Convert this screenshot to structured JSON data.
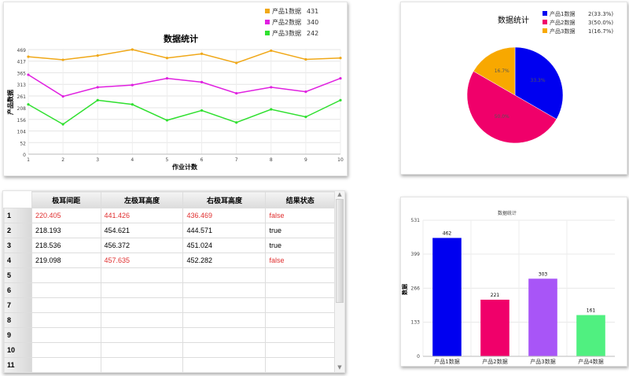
{
  "chart_data": [
    {
      "type": "line",
      "title": "数据统计",
      "xlabel": "作业计数",
      "ylabel": "产品数据",
      "x": [
        1,
        2,
        3,
        4,
        5,
        6,
        7,
        8,
        9,
        10
      ],
      "yticks": [
        0,
        52,
        104,
        156,
        208,
        261,
        313,
        365,
        417,
        469
      ],
      "ylim": [
        0,
        469
      ],
      "grid": true,
      "legend": "top-right",
      "series": [
        {
          "name": "产品1数据",
          "legend_value": "431",
          "color": "#f0a818",
          "values": [
            437,
            423,
            442,
            469,
            431,
            450,
            409,
            464,
            425,
            431
          ]
        },
        {
          "name": "产品2数据",
          "legend_value": "340",
          "color": "#e020e0",
          "values": [
            356,
            259,
            300,
            310,
            340,
            323,
            273,
            300,
            280,
            340
          ]
        },
        {
          "name": "产品3数据",
          "legend_value": "242",
          "color": "#30e030",
          "values": [
            223,
            134,
            242,
            223,
            152,
            196,
            142,
            201,
            167,
            242
          ]
        }
      ]
    },
    {
      "type": "pie",
      "title": "数据统计",
      "legend": "top-right",
      "slices": [
        {
          "name": "产品1数据",
          "value": 2,
          "label": "2(33.3%)",
          "pct": "33.3%",
          "color": "#0000f0"
        },
        {
          "name": "产品2数据",
          "value": 3,
          "label": "3(50.0%)",
          "pct": "50.0%",
          "color": "#f0006a"
        },
        {
          "name": "产品3数据",
          "value": 1,
          "label": "1(16.7%)",
          "pct": "16.7%",
          "color": "#f8a800"
        }
      ]
    },
    {
      "type": "bar",
      "title": "数据统计",
      "ylabel": "数据",
      "ylim": [
        0,
        531
      ],
      "yticks": [
        0,
        133,
        266,
        399,
        531
      ],
      "grid": true,
      "categories": [
        "产品1数据",
        "产品2数据",
        "产品3数据",
        "产品4数据"
      ],
      "values": [
        462,
        221,
        303,
        161
      ],
      "colors": [
        "#0000f0",
        "#f0006a",
        "#a855f7",
        "#50f080"
      ]
    }
  ],
  "table": {
    "headers": [
      "极耳间距",
      "左极耳高度",
      "右极耳高度",
      "结果状态"
    ],
    "rows": [
      {
        "n": "1",
        "c": [
          "220.405",
          "441.426",
          "436.469",
          "false"
        ],
        "red": [
          true,
          true,
          true,
          true
        ]
      },
      {
        "n": "2",
        "c": [
          "218.193",
          "454.621",
          "444.571",
          "true"
        ],
        "red": [
          false,
          false,
          false,
          false
        ]
      },
      {
        "n": "3",
        "c": [
          "218.536",
          "456.372",
          "451.024",
          "true"
        ],
        "red": [
          false,
          false,
          false,
          false
        ]
      },
      {
        "n": "4",
        "c": [
          "219.098",
          "457.635",
          "452.282",
          "false"
        ],
        "red": [
          false,
          true,
          false,
          true
        ]
      },
      {
        "n": "5",
        "c": [
          "",
          "",
          "",
          ""
        ]
      },
      {
        "n": "6",
        "c": [
          "",
          "",
          "",
          ""
        ]
      },
      {
        "n": "7",
        "c": [
          "",
          "",
          "",
          ""
        ]
      },
      {
        "n": "8",
        "c": [
          "",
          "",
          "",
          ""
        ]
      },
      {
        "n": "9",
        "c": [
          "",
          "",
          "",
          ""
        ]
      },
      {
        "n": "10",
        "c": [
          "",
          "",
          "",
          ""
        ]
      },
      {
        "n": "11",
        "c": [
          "",
          "",
          "",
          ""
        ]
      }
    ]
  }
}
